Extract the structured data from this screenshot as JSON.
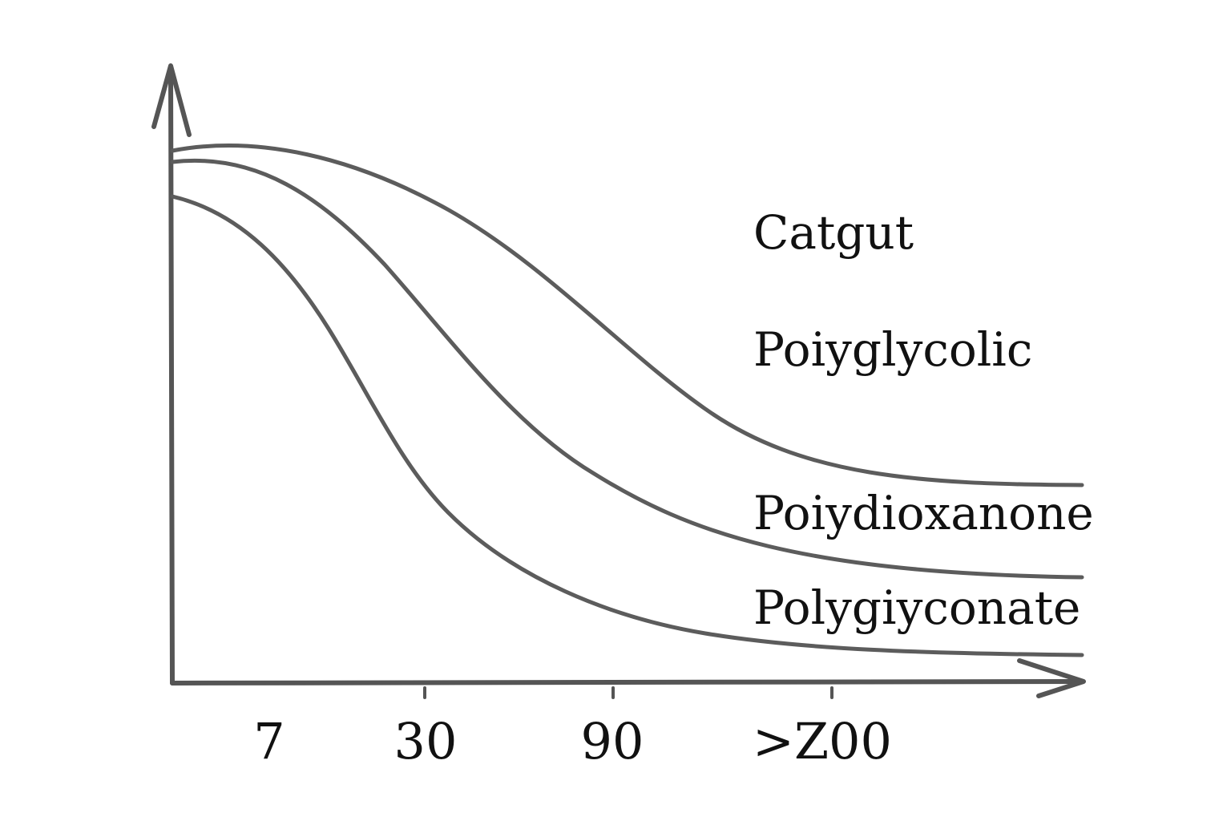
{
  "chart_data": {
    "type": "line",
    "title": "",
    "xlabel": "",
    "ylabel": "",
    "x_tick_labels": [
      "7",
      "30",
      "90",
      ">Z00"
    ],
    "legend_labels": [
      "Catgut",
      "Poiyglycolic",
      "Poiydioxanone",
      "Polygiyconate"
    ],
    "grid": false,
    "colors": {
      "axis": "#555555",
      "curve": "#5c5c5c",
      "text": "#111111"
    }
  }
}
